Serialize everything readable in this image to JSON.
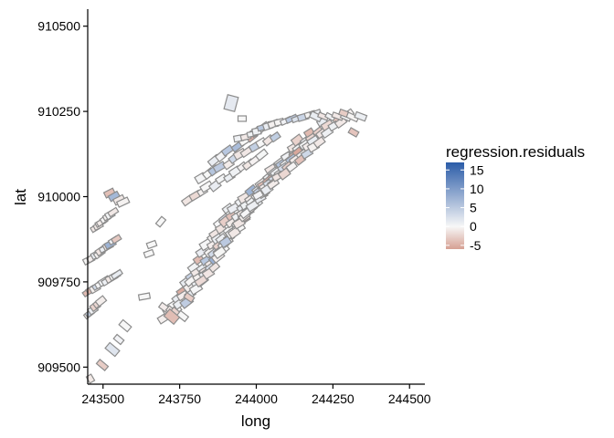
{
  "chart_data": {
    "type": "choropleth",
    "xlabel": "long",
    "ylabel": "lat",
    "xlim": [
      243450,
      244550
    ],
    "ylim": [
      909450,
      910550
    ],
    "x_ticks": [
      243500,
      243750,
      244000,
      244250,
      244500
    ],
    "x_tick_labels": [
      "243500",
      "243750",
      "244000",
      "244250",
      "244500"
    ],
    "y_ticks": [
      909500,
      909750,
      910000,
      910250,
      910500
    ],
    "y_tick_labels": [
      "909500",
      "909750",
      "910000",
      "910250",
      "910500"
    ],
    "legend": {
      "title": "regression.residuals",
      "placement": "right",
      "range": [
        -6,
        17
      ],
      "breaks": [
        15,
        10,
        5,
        0,
        -5
      ],
      "break_labels": [
        "15",
        "10",
        "5",
        "0",
        "-5"
      ],
      "low_color": "#d6a093",
      "mid_color": "#f7f7f7",
      "high_color": "#2b5ca8"
    },
    "parcel_color": "#8c8c8c"
  }
}
